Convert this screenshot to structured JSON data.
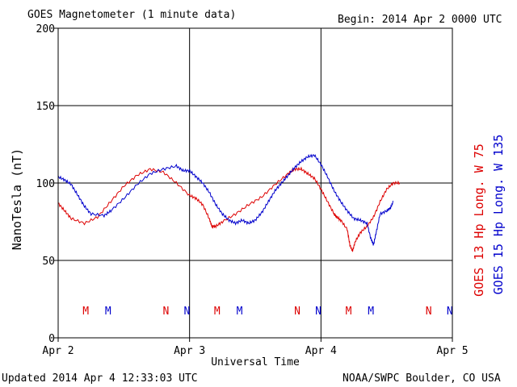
{
  "header": {
    "title": "GOES Magnetometer (1 minute data)",
    "begin": "Begin:  2014 Apr 2 0000 UTC"
  },
  "footer": {
    "updated": "Updated 2014 Apr  4 12:33:03 UTC",
    "source": "NOAA/SWPC Boulder, CO USA"
  },
  "colors": {
    "series_red": "#dd0000",
    "series_blue": "#0000cc",
    "axis": "#000000"
  },
  "chart_data": {
    "type": "line",
    "xlabel": "Universal Time",
    "ylabel": "NanoTesla (nT)",
    "ylim": [
      0,
      200
    ],
    "yticks": [
      0,
      50,
      100,
      150,
      200
    ],
    "xlim_days": [
      0,
      3
    ],
    "xtick_labels": [
      "Apr 2",
      "Apr 3",
      "Apr 4",
      "Apr 5"
    ],
    "grid": true,
    "legend_placement": "right-vertical",
    "series": [
      {
        "name": "GOES 13 Hp  Long. W 75",
        "color": "#dd0000",
        "points": [
          [
            0.0,
            87
          ],
          [
            0.05,
            82
          ],
          [
            0.1,
            77
          ],
          [
            0.2,
            74
          ],
          [
            0.3,
            78
          ],
          [
            0.4,
            88
          ],
          [
            0.5,
            98
          ],
          [
            0.6,
            105
          ],
          [
            0.7,
            109
          ],
          [
            0.8,
            107
          ],
          [
            0.9,
            100
          ],
          [
            1.0,
            92
          ],
          [
            1.05,
            90
          ],
          [
            1.1,
            86
          ],
          [
            1.15,
            77
          ],
          [
            1.17,
            72
          ],
          [
            1.2,
            72
          ],
          [
            1.25,
            75
          ],
          [
            1.35,
            80
          ],
          [
            1.45,
            86
          ],
          [
            1.55,
            91
          ],
          [
            1.65,
            99
          ],
          [
            1.75,
            106
          ],
          [
            1.8,
            109
          ],
          [
            1.85,
            109
          ],
          [
            1.9,
            106
          ],
          [
            1.95,
            103
          ],
          [
            2.0,
            96
          ],
          [
            2.05,
            88
          ],
          [
            2.1,
            80
          ],
          [
            2.12,
            78
          ],
          [
            2.15,
            76
          ],
          [
            2.2,
            70
          ],
          [
            2.22,
            60
          ],
          [
            2.24,
            56
          ],
          [
            2.26,
            62
          ],
          [
            2.3,
            68
          ],
          [
            2.35,
            72
          ],
          [
            2.4,
            78
          ],
          [
            2.45,
            88
          ],
          [
            2.5,
            96
          ],
          [
            2.55,
            100
          ],
          [
            2.6,
            100
          ]
        ],
        "marks": [
          {
            "label": "M",
            "x_day": 0.21
          },
          {
            "label": "N",
            "x_day": 0.82
          },
          {
            "label": "M",
            "x_day": 1.21
          },
          {
            "label": "N",
            "x_day": 1.82
          },
          {
            "label": "M",
            "x_day": 2.21
          },
          {
            "label": "N",
            "x_day": 2.82
          }
        ]
      },
      {
        "name": "GOES 15 Hp  Long. W 135",
        "color": "#0000cc",
        "points": [
          [
            0.0,
            104
          ],
          [
            0.05,
            102
          ],
          [
            0.1,
            99
          ],
          [
            0.15,
            92
          ],
          [
            0.2,
            85
          ],
          [
            0.25,
            80
          ],
          [
            0.35,
            79
          ],
          [
            0.4,
            82
          ],
          [
            0.5,
            90
          ],
          [
            0.6,
            99
          ],
          [
            0.7,
            106
          ],
          [
            0.8,
            109
          ],
          [
            0.9,
            111
          ],
          [
            0.95,
            108
          ],
          [
            1.0,
            108
          ],
          [
            1.05,
            104
          ],
          [
            1.1,
            100
          ],
          [
            1.15,
            94
          ],
          [
            1.2,
            86
          ],
          [
            1.25,
            80
          ],
          [
            1.3,
            76
          ],
          [
            1.35,
            74
          ],
          [
            1.4,
            76
          ],
          [
            1.45,
            74
          ],
          [
            1.5,
            76
          ],
          [
            1.55,
            81
          ],
          [
            1.6,
            88
          ],
          [
            1.65,
            95
          ],
          [
            1.7,
            100
          ],
          [
            1.75,
            105
          ],
          [
            1.8,
            110
          ],
          [
            1.85,
            114
          ],
          [
            1.9,
            117
          ],
          [
            1.95,
            118
          ],
          [
            2.0,
            112
          ],
          [
            2.05,
            104
          ],
          [
            2.1,
            95
          ],
          [
            2.15,
            88
          ],
          [
            2.2,
            82
          ],
          [
            2.25,
            77
          ],
          [
            2.3,
            76
          ],
          [
            2.35,
            74
          ],
          [
            2.38,
            64
          ],
          [
            2.4,
            60
          ],
          [
            2.42,
            68
          ],
          [
            2.45,
            80
          ],
          [
            2.5,
            82
          ],
          [
            2.53,
            84
          ],
          [
            2.55,
            88
          ]
        ],
        "marks": [
          {
            "label": "M",
            "x_day": 0.38
          },
          {
            "label": "N",
            "x_day": 0.98
          },
          {
            "label": "M",
            "x_day": 1.38
          },
          {
            "label": "N",
            "x_day": 1.98
          },
          {
            "label": "M",
            "x_day": 2.38
          },
          {
            "label": "N",
            "x_day": 2.98
          }
        ]
      }
    ]
  }
}
